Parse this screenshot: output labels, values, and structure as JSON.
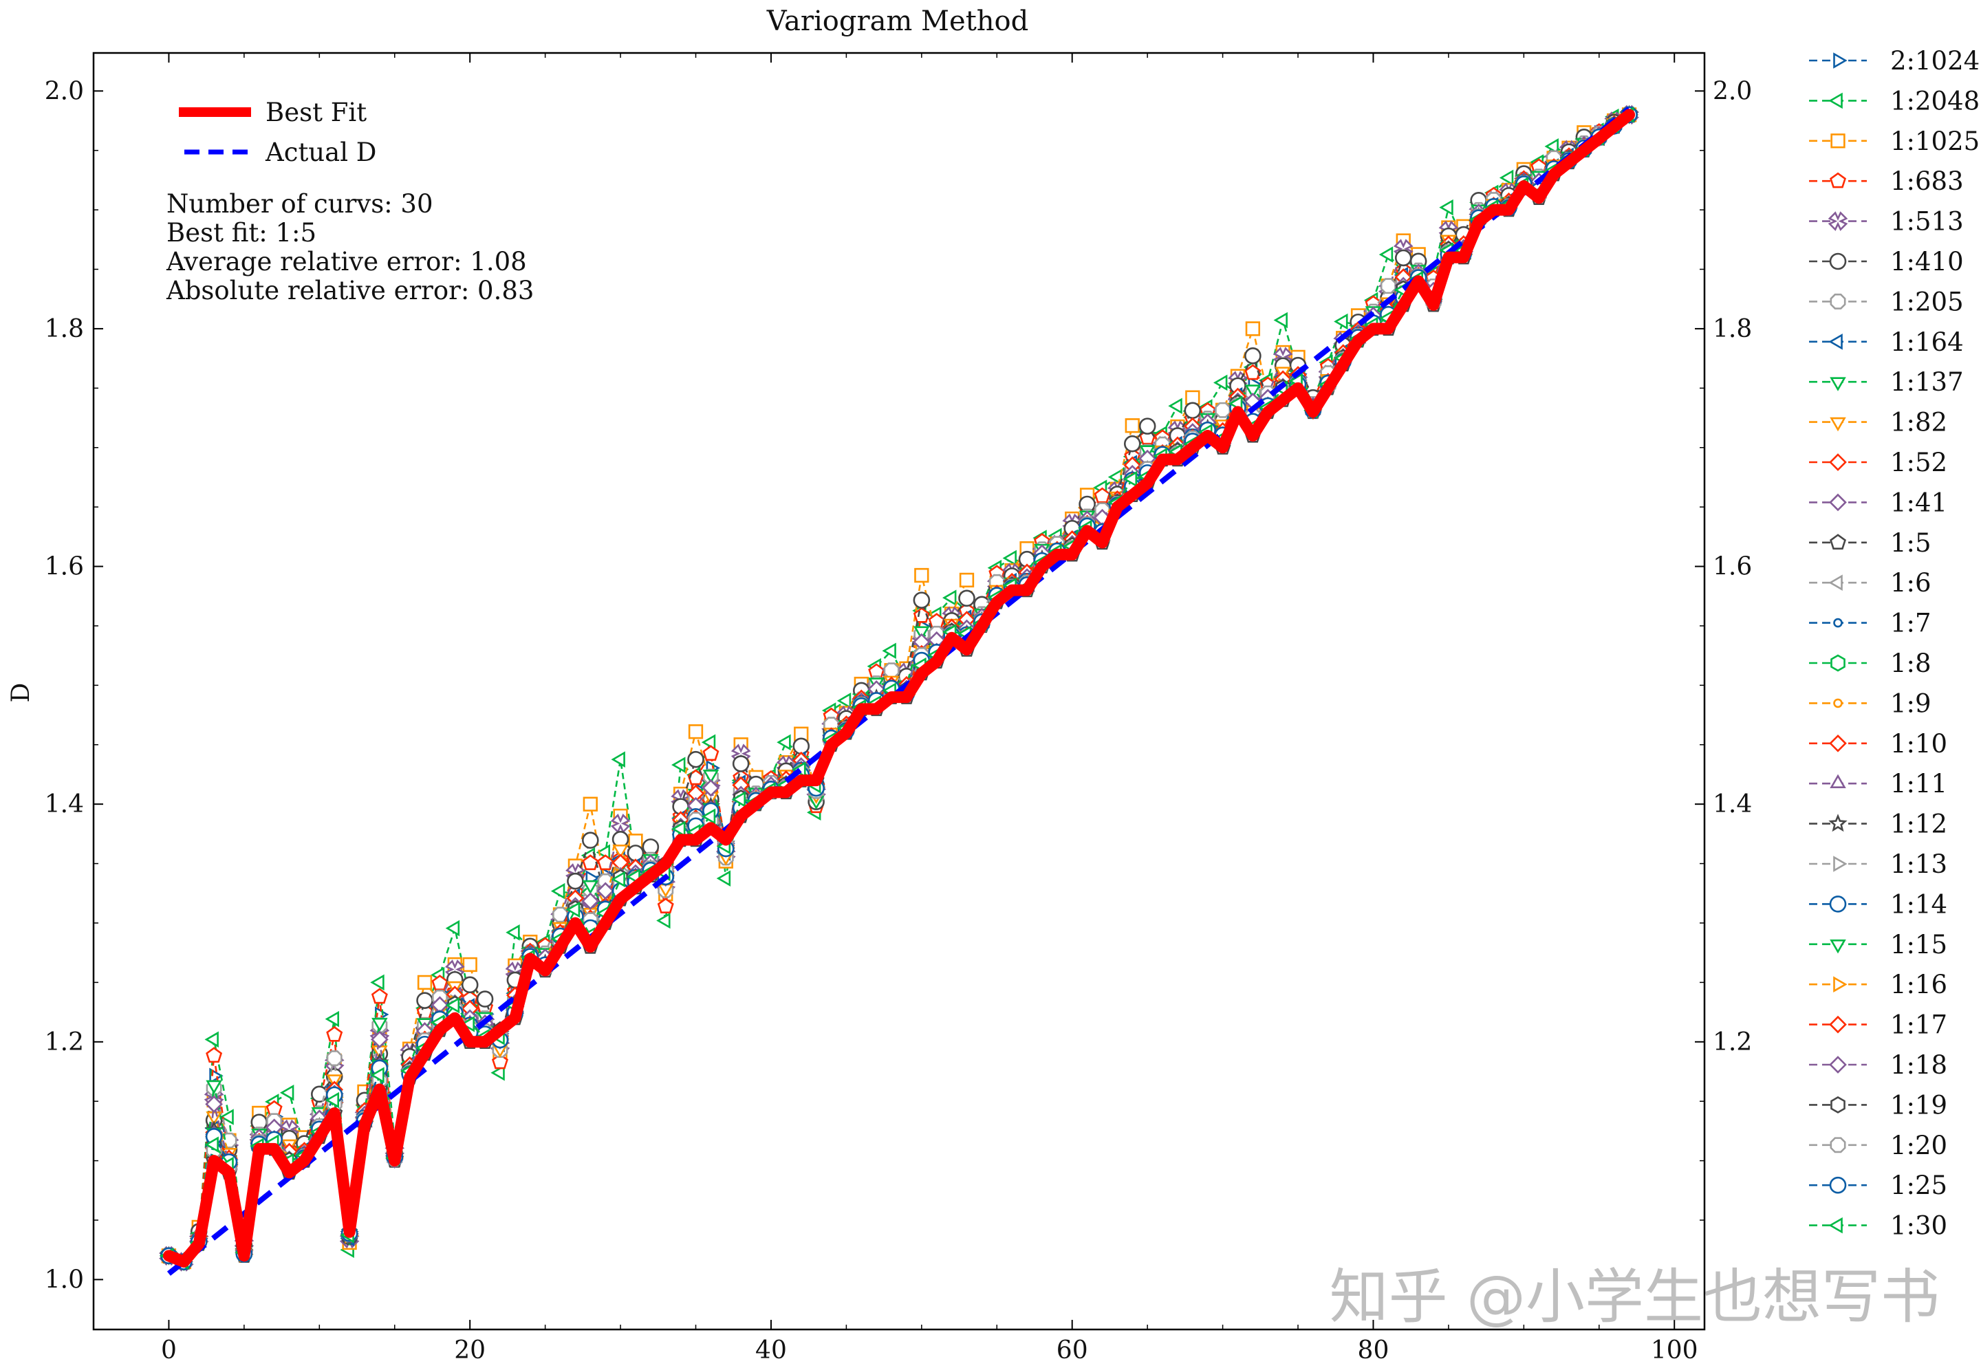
{
  "chart_data": {
    "type": "line",
    "title": "Variogram Method",
    "xlabel": "",
    "ylabel": "D",
    "xlim": [
      -5,
      102
    ],
    "ylim": [
      0.958,
      2.032
    ],
    "xticks": [
      0,
      20,
      40,
      60,
      80,
      100
    ],
    "yticks_left": [
      1.0,
      1.2,
      1.4,
      1.6,
      1.8,
      2.0
    ],
    "yticks_right": [
      1.2,
      1.4,
      1.6,
      1.8,
      2.0
    ],
    "grid": false,
    "info_lines": [
      "Number of curvs: 30",
      "Best fit: 1:5",
      "Average relative error: 1.08",
      "Absolute relative error: 0.83"
    ],
    "inner_legend": [
      {
        "name": "Best Fit",
        "color": "#ff0000",
        "style": "solid"
      },
      {
        "name": "Actual D",
        "color": "#0000ff",
        "style": "dashed"
      }
    ],
    "actual_d": {
      "x": [
        0,
        97
      ],
      "y": [
        1.005,
        1.985
      ]
    },
    "best_fit": {
      "name": "1:5",
      "x": [
        0,
        1,
        2,
        3,
        4,
        5,
        6,
        7,
        8,
        9,
        10,
        11,
        12,
        13,
        14,
        15,
        16,
        17,
        18,
        19,
        20,
        21,
        22,
        23,
        24,
        25,
        26,
        27,
        28,
        29,
        30,
        31,
        32,
        33,
        34,
        35,
        36,
        37,
        38,
        39,
        40,
        41,
        42,
        43,
        44,
        45,
        46,
        47,
        48,
        49,
        50,
        51,
        52,
        53,
        54,
        55,
        56,
        57,
        58,
        59,
        60,
        61,
        62,
        63,
        64,
        65,
        66,
        67,
        68,
        69,
        70,
        71,
        72,
        73,
        74,
        75,
        76,
        77,
        78,
        79,
        80,
        81,
        82,
        83,
        84,
        85,
        86,
        87,
        88,
        89,
        90,
        91,
        92,
        93,
        94,
        95,
        96,
        97
      ],
      "y": [
        1.02,
        1.015,
        1.03,
        1.1,
        1.09,
        1.02,
        1.11,
        1.11,
        1.09,
        1.1,
        1.12,
        1.14,
        1.04,
        1.13,
        1.16,
        1.1,
        1.17,
        1.19,
        1.21,
        1.22,
        1.2,
        1.2,
        1.21,
        1.22,
        1.27,
        1.26,
        1.28,
        1.3,
        1.28,
        1.3,
        1.32,
        1.33,
        1.34,
        1.35,
        1.37,
        1.37,
        1.38,
        1.37,
        1.39,
        1.4,
        1.41,
        1.41,
        1.42,
        1.42,
        1.45,
        1.46,
        1.48,
        1.48,
        1.49,
        1.49,
        1.51,
        1.52,
        1.54,
        1.53,
        1.55,
        1.57,
        1.58,
        1.58,
        1.6,
        1.61,
        1.61,
        1.63,
        1.62,
        1.65,
        1.66,
        1.67,
        1.69,
        1.69,
        1.7,
        1.71,
        1.7,
        1.73,
        1.71,
        1.73,
        1.74,
        1.75,
        1.73,
        1.75,
        1.77,
        1.79,
        1.8,
        1.8,
        1.82,
        1.84,
        1.82,
        1.86,
        1.86,
        1.89,
        1.9,
        1.9,
        1.92,
        1.91,
        1.93,
        1.94,
        1.95,
        1.96,
        1.97,
        1.98
      ]
    },
    "series": [
      {
        "name": "2:1024",
        "color": "#0c5da5",
        "marker": "tri-right",
        "dy": [
          0.03,
          -0.01
        ]
      },
      {
        "name": "1:2048",
        "color": "#00b945",
        "marker": "tri-left",
        "dy": [
          0.06,
          -0.05
        ]
      },
      {
        "name": "1:1025",
        "color": "#ff9500",
        "marker": "square",
        "dy": [
          0.05,
          -0.04
        ]
      },
      {
        "name": "1:683",
        "color": "#ff2c00",
        "marker": "pentagon",
        "dy": [
          0.04,
          -0.03
        ]
      },
      {
        "name": "1:513",
        "color": "#845b97",
        "marker": "x-filled",
        "dy": [
          0.035,
          -0.02
        ]
      },
      {
        "name": "1:410",
        "color": "#474747",
        "marker": "circle",
        "dy": [
          0.04,
          -0.02
        ]
      },
      {
        "name": "1:205",
        "color": "#9e9e9e",
        "marker": "octagon",
        "dy": [
          0.03,
          -0.02
        ]
      },
      {
        "name": "1:164",
        "color": "#0c5da5",
        "marker": "tri-left",
        "dy": [
          0.02,
          -0.02
        ]
      },
      {
        "name": "1:137",
        "color": "#00b945",
        "marker": "tri-down",
        "dy": [
          0.025,
          -0.02
        ]
      },
      {
        "name": "1:82",
        "color": "#ff9500",
        "marker": "tri-down",
        "dy": [
          0.02,
          -0.02
        ]
      },
      {
        "name": "1:52",
        "color": "#ff2c00",
        "marker": "diamond",
        "dy": [
          0.02,
          -0.01
        ]
      },
      {
        "name": "1:41",
        "color": "#845b97",
        "marker": "diamond",
        "dy": [
          0.02,
          -0.01
        ]
      },
      {
        "name": "1:5",
        "color": "#474747",
        "marker": "pentagon",
        "dy": [
          0.0,
          0.0
        ]
      },
      {
        "name": "1:6",
        "color": "#9e9e9e",
        "marker": "tri-left",
        "dy": [
          0.01,
          -0.01
        ]
      },
      {
        "name": "1:7",
        "color": "#0c5da5",
        "marker": "dot",
        "dy": [
          0.01,
          -0.01
        ]
      },
      {
        "name": "1:8",
        "color": "#00b945",
        "marker": "hexagon",
        "dy": [
          0.01,
          -0.01
        ]
      },
      {
        "name": "1:9",
        "color": "#ff9500",
        "marker": "dot",
        "dy": [
          0.01,
          -0.01
        ]
      },
      {
        "name": "1:10",
        "color": "#ff2c00",
        "marker": "diamond",
        "dy": [
          0.01,
          -0.01
        ]
      },
      {
        "name": "1:11",
        "color": "#845b97",
        "marker": "tri-up",
        "dy": [
          0.01,
          -0.01
        ]
      },
      {
        "name": "1:12",
        "color": "#474747",
        "marker": "star",
        "dy": [
          0.01,
          -0.01
        ]
      },
      {
        "name": "1:13",
        "color": "#9e9e9e",
        "marker": "tri-right",
        "dy": [
          0.01,
          -0.01
        ]
      },
      {
        "name": "1:14",
        "color": "#0c5da5",
        "marker": "circle",
        "dy": [
          0.01,
          -0.01
        ]
      },
      {
        "name": "1:15",
        "color": "#00b945",
        "marker": "tri-down",
        "dy": [
          0.01,
          -0.01
        ]
      },
      {
        "name": "1:16",
        "color": "#ff9500",
        "marker": "tri-right",
        "dy": [
          0.01,
          -0.01
        ]
      },
      {
        "name": "1:17",
        "color": "#ff2c00",
        "marker": "diamond",
        "dy": [
          0.01,
          -0.01
        ]
      },
      {
        "name": "1:18",
        "color": "#845b97",
        "marker": "diamond",
        "dy": [
          0.01,
          -0.01
        ]
      },
      {
        "name": "1:19",
        "color": "#474747",
        "marker": "hexagon",
        "dy": [
          0.01,
          -0.01
        ]
      },
      {
        "name": "1:20",
        "color": "#9e9e9e",
        "marker": "octagon",
        "dy": [
          0.01,
          -0.01
        ]
      },
      {
        "name": "1:25",
        "color": "#0c5da5",
        "marker": "circle",
        "dy": [
          0.01,
          -0.01
        ]
      },
      {
        "name": "1:30",
        "color": "#00b945",
        "marker": "tri-left",
        "dy": [
          0.01,
          -0.01
        ]
      }
    ],
    "deviation_pattern": [
      0.0,
      0.0,
      0.2,
      1.7,
      0.6,
      0.2,
      0.4,
      0.6,
      0.8,
      0.3,
      0.6,
      1.1,
      -0.2,
      0.4,
      1.5,
      0.2,
      0.4,
      0.8,
      0.7,
      0.9,
      1.0,
      0.6,
      -0.6,
      0.8,
      0.2,
      0.4,
      0.6,
      0.8,
      1.6,
      0.9,
      1.4,
      0.6,
      0.4,
      -0.8,
      0.7,
      1.3,
      1.2,
      -0.5,
      1.0,
      0.3,
      0.2,
      0.5,
      0.6,
      -0.6,
      0.4,
      0.3,
      0.3,
      0.6,
      0.5,
      0.4,
      1.1,
      0.6,
      0.4,
      0.9,
      0.3,
      0.4,
      0.3,
      0.5,
      0.4,
      0.2,
      0.5,
      0.4,
      0.7,
      0.3,
      0.9,
      0.8,
      0.3,
      0.5,
      0.6,
      0.4,
      0.7,
      0.5,
      1.2,
      0.4,
      0.8,
      0.4,
      0.2,
      0.3,
      0.4,
      0.3,
      0.4,
      0.8,
      0.9,
      0.3,
      0.4,
      0.5,
      0.4,
      0.3,
      0.2,
      0.3,
      0.2,
      0.5,
      0.3,
      0.2,
      0.2,
      0.1,
      0.1,
      0.0
    ]
  },
  "watermark": "知乎 @小学生也想写书"
}
